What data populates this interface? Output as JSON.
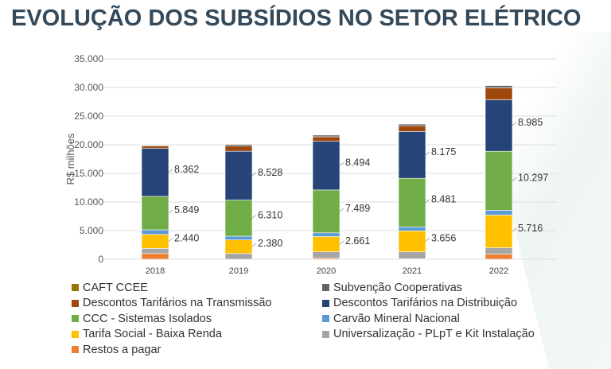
{
  "title": "EVOLUÇÃO DOS SUBSÍDIOS NO SETOR ELÉTRICO",
  "chart_data": {
    "type": "bar",
    "stacked": true,
    "ylabel": "R$ milhões",
    "ylim": [
      0,
      35000
    ],
    "yticks": [
      "0",
      "5.000",
      "10.000",
      "15.000",
      "20.000",
      "25.000",
      "30.000",
      "35.000"
    ],
    "grid": true,
    "legend_position": "bottom",
    "categories": [
      "2018",
      "2019",
      "2020",
      "2021",
      "2022"
    ],
    "series": [
      {
        "name": "Restos a pagar",
        "color": "#ed7d31",
        "values": [
          1000,
          0,
          200,
          100,
          900
        ]
      },
      {
        "name": "Universalização - PLpT e Kit Instalação",
        "color": "#a5a5a5",
        "values": [
          900,
          1000,
          1100,
          1200,
          1100
        ]
      },
      {
        "name": "Tarifa Social - Baixa Renda",
        "color": "#ffc000",
        "values": [
          2440,
          2380,
          2661,
          3656,
          5716
        ],
        "labels": [
          "2.440",
          "2.380",
          "2.661",
          "3.656",
          "5.716"
        ]
      },
      {
        "name": "Carvão Mineral Nacional",
        "color": "#5b9bd5",
        "values": [
          800,
          650,
          650,
          700,
          850
        ]
      },
      {
        "name": "CCC - Sistemas Isolados",
        "color": "#70ad47",
        "values": [
          5849,
          6310,
          7489,
          8481,
          10297
        ],
        "labels": [
          "5.849",
          "6.310",
          "7.489",
          "8.481",
          "10.297"
        ]
      },
      {
        "name": "Descontos Tarifários na Distribuição",
        "color": "#264478",
        "values": [
          8362,
          8528,
          8494,
          8175,
          8985
        ],
        "labels": [
          "8.362",
          "8.528",
          "8.494",
          "8.175",
          "8.985"
        ]
      },
      {
        "name": "Descontos Tarifários na Transmissão",
        "color": "#9e480e",
        "values": [
          400,
          900,
          800,
          1000,
          2100
        ]
      },
      {
        "name": "Subvenção Cooperativas",
        "color": "#636363",
        "values": [
          150,
          300,
          300,
          300,
          400
        ]
      },
      {
        "name": "CAFT CCEE",
        "color": "#997300",
        "values": [
          50,
          50,
          50,
          50,
          50
        ]
      }
    ],
    "legend_order": [
      "CAFT CCEE",
      "Subvenção Cooperativas",
      "Descontos Tarifários na Transmissão",
      "Descontos Tarifários na Distribuição",
      "CCC - Sistemas Isolados",
      "Carvão Mineral Nacional",
      "Tarifa Social - Baixa Renda",
      "Universalização - PLpT e Kit Instalação",
      "Restos a pagar"
    ]
  }
}
